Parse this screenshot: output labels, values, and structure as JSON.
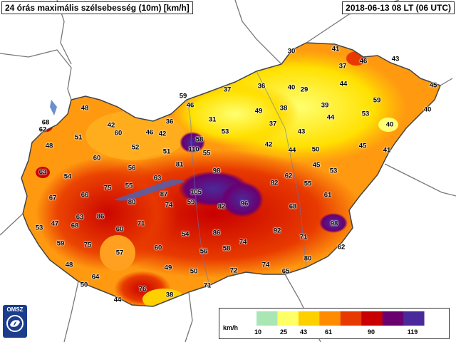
{
  "title": "24 órás maximális szélsebesség (10m) [km/h]",
  "timestamp": "2018-06-13 08 LT  (06 UTC)",
  "legend": {
    "unit": "km/h",
    "ticks": [
      "10",
      "25",
      "43",
      "61",
      "90",
      "119"
    ],
    "colors": [
      "#a8e6b4",
      "#ffff66",
      "#ffd000",
      "#ff8c00",
      "#e83a00",
      "#c80000",
      "#6a0070",
      "#4a2a9a",
      "#ffffff"
    ]
  },
  "logo": {
    "text": "OMSZ",
    "icon": "omsz-logo-icon"
  },
  "stations": [
    {
      "v": "30"
    },
    {
      "v": "41"
    },
    {
      "v": "46"
    },
    {
      "v": "43"
    },
    {
      "v": "37"
    },
    {
      "v": "44"
    },
    {
      "v": "45"
    },
    {
      "v": "37"
    },
    {
      "v": "36"
    },
    {
      "v": "40"
    },
    {
      "v": "29"
    },
    {
      "v": "59"
    },
    {
      "v": "40"
    },
    {
      "v": "46"
    },
    {
      "v": "48"
    },
    {
      "v": "49"
    },
    {
      "v": "38"
    },
    {
      "v": "39"
    },
    {
      "v": "53"
    },
    {
      "v": "59"
    },
    {
      "v": "31"
    },
    {
      "v": "36"
    },
    {
      "v": "37"
    },
    {
      "v": "44"
    },
    {
      "v": "40"
    },
    {
      "v": "68"
    },
    {
      "v": "62"
    },
    {
      "v": "42"
    },
    {
      "v": "60"
    },
    {
      "v": "46"
    },
    {
      "v": "42"
    },
    {
      "v": "53"
    },
    {
      "v": "51"
    },
    {
      "v": "43"
    },
    {
      "v": "48"
    },
    {
      "v": "52"
    },
    {
      "v": "58"
    },
    {
      "v": "110"
    },
    {
      "v": "55"
    },
    {
      "v": "51"
    },
    {
      "v": "42"
    },
    {
      "v": "44"
    },
    {
      "v": "50"
    },
    {
      "v": "45"
    },
    {
      "v": "41"
    },
    {
      "v": "60"
    },
    {
      "v": "56"
    },
    {
      "v": "81"
    },
    {
      "v": "45"
    },
    {
      "v": "53"
    },
    {
      "v": "63"
    },
    {
      "v": "54"
    },
    {
      "v": "63"
    },
    {
      "v": "98"
    },
    {
      "v": "62"
    },
    {
      "v": "75"
    },
    {
      "v": "55"
    },
    {
      "v": "82"
    },
    {
      "v": "55"
    },
    {
      "v": "67"
    },
    {
      "v": "66"
    },
    {
      "v": "87"
    },
    {
      "v": "105"
    },
    {
      "v": "61"
    },
    {
      "v": "80"
    },
    {
      "v": "74"
    },
    {
      "v": "59"
    },
    {
      "v": "96"
    },
    {
      "v": "82"
    },
    {
      "v": "63"
    },
    {
      "v": "86"
    },
    {
      "v": "68"
    },
    {
      "v": "53"
    },
    {
      "v": "47"
    },
    {
      "v": "68"
    },
    {
      "v": "71"
    },
    {
      "v": "98"
    },
    {
      "v": "60"
    },
    {
      "v": "54"
    },
    {
      "v": "86"
    },
    {
      "v": "92"
    },
    {
      "v": "71"
    },
    {
      "v": "59"
    },
    {
      "v": "75"
    },
    {
      "v": "74"
    },
    {
      "v": "62"
    },
    {
      "v": "57"
    },
    {
      "v": "60"
    },
    {
      "v": "56"
    },
    {
      "v": "58"
    },
    {
      "v": "80"
    },
    {
      "v": "48"
    },
    {
      "v": "49"
    },
    {
      "v": "72"
    },
    {
      "v": "74"
    },
    {
      "v": "64"
    },
    {
      "v": "50"
    },
    {
      "v": "65"
    },
    {
      "v": "50"
    },
    {
      "v": "76"
    },
    {
      "v": "71"
    },
    {
      "v": "44"
    },
    {
      "v": "38"
    }
  ]
}
